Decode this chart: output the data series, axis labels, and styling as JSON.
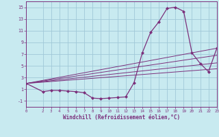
{
  "background_color": "#c8eaf0",
  "grid_color": "#a0c8d8",
  "line_color": "#7b2f7b",
  "marker_color": "#7b2f7b",
  "xlabel": "Windchill (Refroidissement éolien,°C)",
  "xlabel_color": "#7b2f7b",
  "xlim": [
    0,
    23
  ],
  "ylim": [
    -2,
    16
  ],
  "yticks": [
    -1,
    1,
    3,
    5,
    7,
    9,
    11,
    13,
    15
  ],
  "xticks": [
    0,
    2,
    3,
    4,
    5,
    6,
    7,
    8,
    9,
    10,
    11,
    12,
    13,
    14,
    15,
    16,
    17,
    18,
    19,
    20,
    21,
    22,
    23
  ],
  "main_series": {
    "x": [
      0,
      2,
      3,
      4,
      5,
      6,
      7,
      8,
      9,
      10,
      11,
      12,
      13,
      14,
      15,
      16,
      17,
      18,
      19,
      20,
      21,
      22,
      23
    ],
    "y": [
      2.0,
      0.6,
      0.8,
      0.8,
      0.7,
      0.6,
      0.4,
      -0.5,
      -0.6,
      -0.5,
      -0.4,
      -0.3,
      2.1,
      7.2,
      10.7,
      12.5,
      14.8,
      15.0,
      14.3,
      7.2,
      5.4,
      4.0,
      8.0
    ]
  },
  "ref_lines": [
    {
      "x": [
        0,
        23
      ],
      "y": [
        2.0,
        8.0
      ]
    },
    {
      "x": [
        0,
        23
      ],
      "y": [
        2.0,
        6.8
      ]
    },
    {
      "x": [
        0,
        23
      ],
      "y": [
        2.0,
        5.5
      ]
    },
    {
      "x": [
        0,
        23
      ],
      "y": [
        2.0,
        4.5
      ]
    }
  ]
}
